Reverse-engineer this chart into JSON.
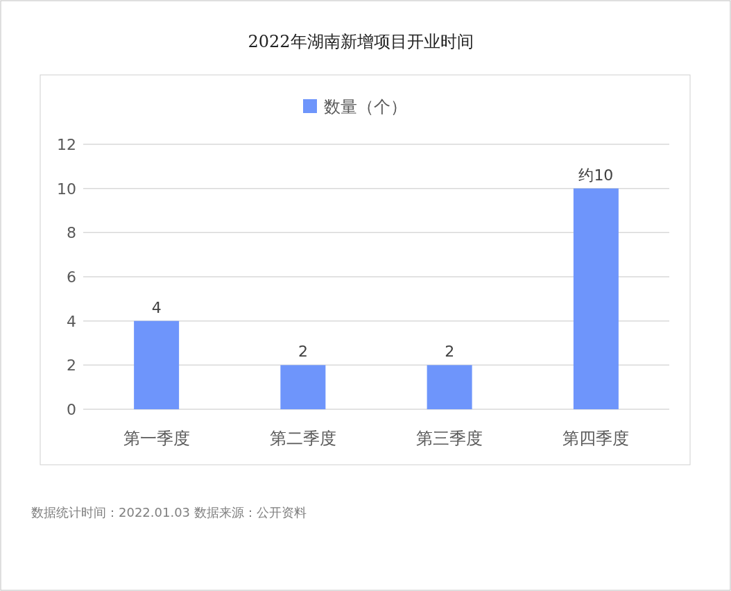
{
  "chart_data": {
    "type": "bar",
    "title": "2022年湖南新增项目开业时间",
    "categories": [
      "第一季度",
      "第二季度",
      "第三季度",
      "第四季度"
    ],
    "series": [
      {
        "name": "数量（个）",
        "color": "#6e95fb",
        "values": [
          4,
          2,
          2,
          10
        ],
        "value_labels": [
          "4",
          "2",
          "2",
          "约10"
        ]
      }
    ],
    "ylim": [
      0,
      12
    ],
    "yticks": [
      0,
      2,
      4,
      6,
      8,
      10,
      12
    ],
    "grid": "y",
    "legend": "top",
    "annotations": [
      "数据统计时间：2022.01.03  数据来源：公开资料"
    ]
  }
}
